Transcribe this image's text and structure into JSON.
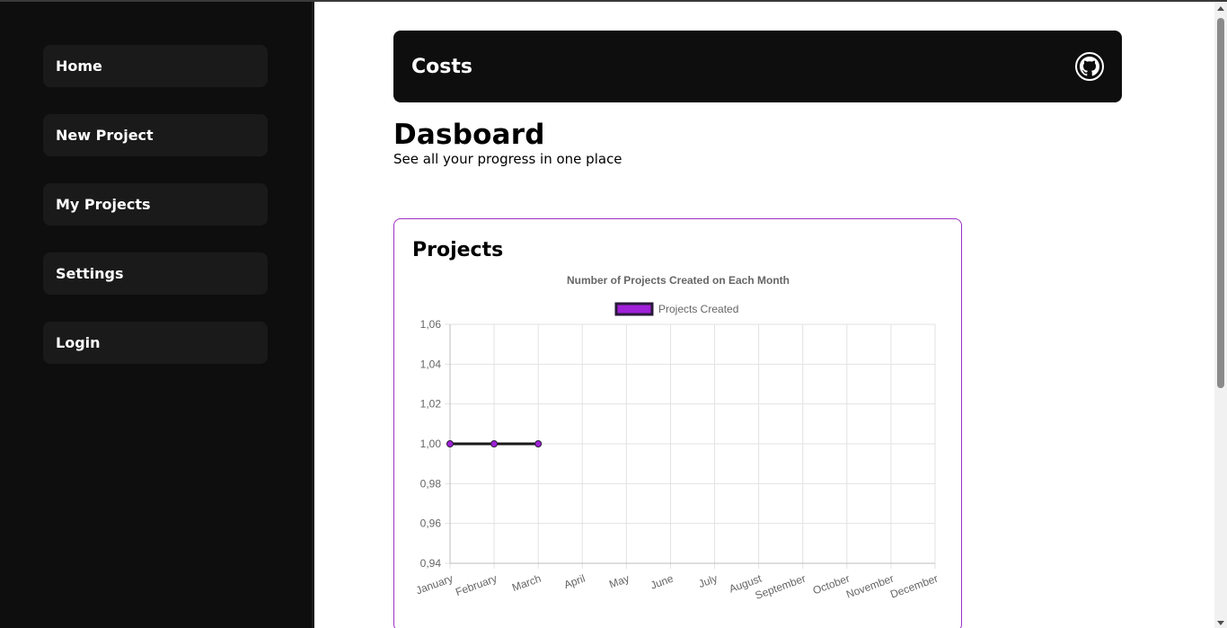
{
  "sidebar": {
    "items": [
      {
        "label": "Home"
      },
      {
        "label": "New Project"
      },
      {
        "label": "My Projects"
      },
      {
        "label": "Settings"
      },
      {
        "label": "Login"
      }
    ]
  },
  "header": {
    "title": "Costs",
    "github_icon": "github-icon"
  },
  "page": {
    "title": "Dasboard",
    "subtitle": "See all your progress in one place"
  },
  "card": {
    "title": "Projects"
  },
  "colors": {
    "sidebar_bg": "#0e0e0e",
    "nav_item_bg": "#1a1a1a",
    "accent": "#9b2fc4",
    "line": "#1a1a1a",
    "legend_fill": "#a020d8"
  },
  "chart_data": {
    "type": "line",
    "title": "Number of Projects Created on Each Month",
    "categories": [
      "January",
      "February",
      "March",
      "April",
      "May",
      "June",
      "July",
      "August",
      "September",
      "October",
      "November",
      "December"
    ],
    "series": [
      {
        "name": "Projects Created",
        "values": [
          1,
          1,
          1,
          null,
          null,
          null,
          null,
          null,
          null,
          null,
          null,
          null
        ]
      }
    ],
    "ylim": [
      0.94,
      1.06
    ],
    "yticks": [
      "1,06",
      "1,04",
      "1,02",
      "1,00",
      "0,98",
      "0,96",
      "0,94"
    ],
    "grid": true,
    "legend": "top"
  }
}
